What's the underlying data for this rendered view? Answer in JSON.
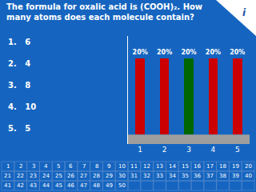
{
  "chart_data": {
    "type": "bar",
    "title": "The formula for oxalic acid is (COOH)₂. How\nmany atoms does each molecule contain?",
    "categories": [
      "1",
      "2",
      "3",
      "4",
      "5"
    ],
    "values": [
      20,
      20,
      20,
      20,
      20
    ],
    "value_labels": [
      "20%",
      "20%",
      "20%",
      "20%",
      "20%"
    ],
    "data_labels": true,
    "colors": [
      "#cc0000",
      "#cc0000",
      "#006600",
      "#cc0000",
      "#cc0000"
    ],
    "ylim": [
      -2.5,
      26
    ],
    "grid": false,
    "tick_labels": "x",
    "annotations": [
      [
        "1.   6",
        "2.   4",
        "3.   8",
        "4.   10",
        "5.   5"
      ],
      [
        "1",
        "2",
        "3",
        "4",
        "5",
        "6",
        "7",
        "8",
        "9",
        "10",
        "11",
        "12",
        "13",
        "14",
        "15",
        "16",
        "17",
        "18",
        "19",
        "20",
        "21",
        "22",
        "23",
        "24",
        "25",
        "26",
        "27",
        "28",
        "29",
        "30",
        "31",
        "32",
        "33",
        "34",
        "35",
        "36",
        "37",
        "38",
        "39",
        "40",
        "41",
        "42",
        "43",
        "44",
        "45",
        "46",
        "47",
        "48",
        "49",
        "50"
      ],
      [
        "i"
      ]
    ]
  }
}
